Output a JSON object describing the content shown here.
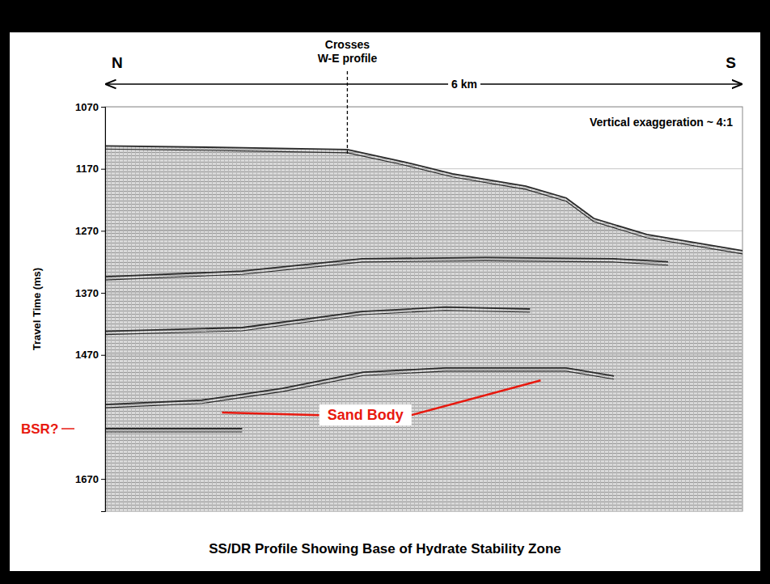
{
  "chart_data": {
    "type": "seismic_profile",
    "title": "SS/DR Profile Showing Base of Hydrate Stability Zone",
    "y_label": "Travel Time (ms)",
    "xlim": [
      0,
      6
    ],
    "ylim": [
      1070,
      1722
    ],
    "yticks": [
      1070,
      1170,
      1270,
      1370,
      1470,
      1670
    ],
    "tick_labels": "y",
    "grid": true,
    "direction_labels": [
      "N",
      "S"
    ],
    "distance_label": "6 km",
    "note": "Vertical exaggeration ~ 4:1",
    "crossing": {
      "text": "Crosses W-E profile",
      "x": 2.28
    },
    "bsr": {
      "text": "BSR?",
      "value": 1589,
      "color": "#e8190f"
    },
    "sand_body": {
      "text": "Sand Body",
      "color": "#e8190f",
      "points": [
        {
          "x": 1.1,
          "y": 1563
        },
        {
          "x": 4.1,
          "y": 1511
        }
      ]
    },
    "series": [
      {
        "color": "#2a2a2a",
        "x": [
          0,
          1.29,
          2.28,
          2.82,
          3.27,
          3.96,
          4.34,
          4.6,
          5.1,
          6
        ],
        "values": [
          1133,
          1136,
          1139,
          1159,
          1178,
          1198,
          1217,
          1250,
          1276,
          1302
        ]
      },
      {
        "color": "#2a2a2a",
        "x": [
          0,
          1.29,
          2.42,
          3.58,
          4.78,
          5.3
        ],
        "values": [
          1344,
          1335,
          1315,
          1313,
          1315,
          1320
        ]
      },
      {
        "color": "#2a2a2a",
        "x": [
          0,
          1.29,
          2.42,
          3.2,
          4.0
        ],
        "values": [
          1432,
          1426,
          1400,
          1393,
          1396
        ]
      },
      {
        "color": "#2a2a2a",
        "x": [
          0,
          0.91,
          1.67,
          2.43,
          3.2,
          4.34,
          4.79
        ],
        "values": [
          1550,
          1543,
          1524,
          1498,
          1491,
          1491,
          1504
        ]
      },
      {
        "color": "#2a2a2a",
        "x": [
          0,
          1.29
        ],
        "values": [
          1589,
          1589
        ]
      }
    ]
  }
}
